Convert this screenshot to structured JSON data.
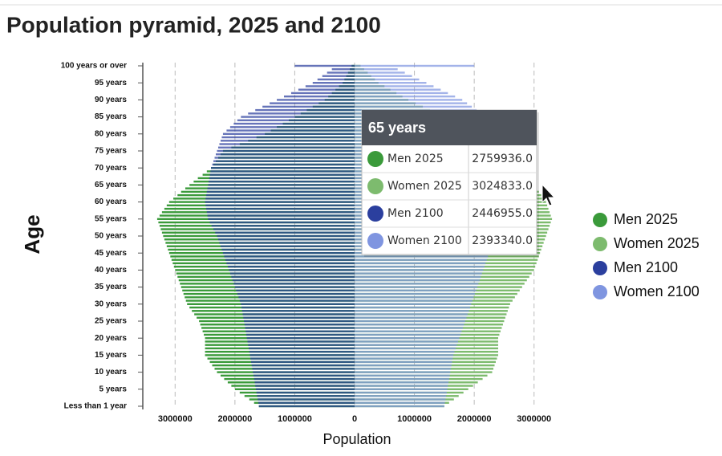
{
  "chart_data": {
    "type": "pyramid",
    "title": "Population pyramid, 2025 and 2100",
    "x_label": "Population",
    "y_label": "Age",
    "categories": [
      "Less than 1 year",
      null,
      null,
      null,
      null,
      "5 years",
      null,
      null,
      null,
      null,
      "10 years",
      null,
      null,
      null,
      null,
      "15 years",
      null,
      null,
      null,
      null,
      "20 years",
      null,
      null,
      null,
      null,
      "25 years",
      null,
      null,
      null,
      null,
      "30 years",
      null,
      null,
      null,
      null,
      "35 years",
      null,
      null,
      null,
      null,
      "40 years",
      null,
      null,
      null,
      null,
      "45 years",
      null,
      null,
      null,
      null,
      "50 years",
      null,
      null,
      null,
      null,
      "55 years",
      null,
      null,
      null,
      null,
      "60 years",
      null,
      null,
      null,
      null,
      "65 years",
      null,
      null,
      null,
      null,
      "70 years",
      null,
      null,
      null,
      null,
      "75 years",
      null,
      null,
      null,
      null,
      "80 years",
      null,
      null,
      null,
      null,
      "85 years",
      null,
      null,
      null,
      null,
      "90 years",
      null,
      null,
      null,
      null,
      "95 years",
      null,
      null,
      null,
      null,
      "100 years or over"
    ],
    "xlim": [
      -3500000,
      3500000
    ],
    "xticks": [
      {
        "value": -3000000,
        "label": "3000000"
      },
      {
        "value": -2000000,
        "label": "2000000"
      },
      {
        "value": -1000000,
        "label": "1000000"
      },
      0,
      1000000,
      2000000,
      3000000
    ],
    "grid": true,
    "legend": "right",
    "series": [
      {
        "name": "Men 2025",
        "color": "#3a9a3a",
        "values": [
          -1600000,
          -1680000,
          -1760000,
          -1840000,
          -1920000,
          -2000000,
          -2060000,
          -2120000,
          -2180000,
          -2240000,
          -2300000,
          -2340000,
          -2380000,
          -2420000,
          -2460000,
          -2500000,
          -2500000,
          -2500000,
          -2500000,
          -2500000,
          -2500000,
          -2520000,
          -2540000,
          -2560000,
          -2580000,
          -2600000,
          -2640000,
          -2680000,
          -2720000,
          -2760000,
          -2800000,
          -2820000,
          -2840000,
          -2860000,
          -2880000,
          -2900000,
          -2920000,
          -2940000,
          -2960000,
          -2980000,
          -3000000,
          -3020000,
          -3040000,
          -3060000,
          -3080000,
          -3100000,
          -3120000,
          -3140000,
          -3160000,
          -3180000,
          -3200000,
          -3220000,
          -3240000,
          -3260000,
          -3280000,
          -3300000,
          -3260000,
          -3220000,
          -3180000,
          -3140000,
          -3100000,
          -3030000,
          -2960000,
          -2900000,
          -2830000,
          -2759936,
          -2690000,
          -2620000,
          -2540000,
          -2470000,
          -2400000,
          -2360000,
          -2320000,
          -2280000,
          -2240000,
          -2200000,
          -2060000,
          -1920000,
          -1780000,
          -1640000,
          -1500000,
          -1400000,
          -1300000,
          -1200000,
          -1100000,
          -1000000,
          -900000,
          -800000,
          -700000,
          -600000,
          -500000,
          -440000,
          -380000,
          -320000,
          -260000,
          -200000,
          -170000,
          -140000,
          -110000,
          -80000,
          -50000
        ]
      },
      {
        "name": "Women 2025",
        "color": "#7dbb6e",
        "values": [
          1500000,
          1580000,
          1660000,
          1740000,
          1820000,
          1900000,
          1980000,
          2060000,
          2140000,
          2220000,
          2300000,
          2320000,
          2340000,
          2360000,
          2380000,
          2400000,
          2400000,
          2400000,
          2400000,
          2400000,
          2400000,
          2420000,
          2440000,
          2460000,
          2480000,
          2500000,
          2520000,
          2540000,
          2560000,
          2580000,
          2600000,
          2640000,
          2680000,
          2720000,
          2760000,
          2800000,
          2840000,
          2880000,
          2920000,
          2960000,
          3000000,
          3020000,
          3040000,
          3060000,
          3080000,
          3100000,
          3120000,
          3140000,
          3160000,
          3180000,
          3200000,
          3220000,
          3240000,
          3260000,
          3280000,
          3300000,
          3280000,
          3260000,
          3240000,
          3220000,
          3200000,
          3160000,
          3120000,
          3080000,
          3040000,
          3024833,
          2980000,
          2930000,
          2890000,
          2840000,
          2800000,
          2740000,
          2680000,
          2620000,
          2560000,
          2500000,
          2400000,
          2300000,
          2200000,
          2100000,
          2000000,
          1900000,
          1800000,
          1700000,
          1600000,
          1500000,
          1380000,
          1260000,
          1140000,
          1020000,
          900000,
          800000,
          700000,
          600000,
          500000,
          400000,
          340000,
          280000,
          220000,
          160000,
          100000
        ]
      },
      {
        "name": "Men 2100",
        "color": "#2b3f9e",
        "values": [
          -1600000,
          -1610000,
          -1620000,
          -1630000,
          -1640000,
          -1650000,
          -1660000,
          -1670000,
          -1680000,
          -1690000,
          -1700000,
          -1710000,
          -1720000,
          -1730000,
          -1740000,
          -1750000,
          -1760000,
          -1770000,
          -1780000,
          -1790000,
          -1800000,
          -1810000,
          -1820000,
          -1830000,
          -1840000,
          -1850000,
          -1860000,
          -1870000,
          -1880000,
          -1890000,
          -1900000,
          -1920000,
          -1940000,
          -1960000,
          -1980000,
          -2000000,
          -2020000,
          -2040000,
          -2060000,
          -2080000,
          -2100000,
          -2120000,
          -2140000,
          -2160000,
          -2180000,
          -2200000,
          -2220000,
          -2240000,
          -2260000,
          -2280000,
          -2300000,
          -2330000,
          -2360000,
          -2390000,
          -2420000,
          -2450000,
          -2460000,
          -2470000,
          -2480000,
          -2490000,
          -2500000,
          -2490000,
          -2480000,
          -2470000,
          -2460000,
          -2446955,
          -2440000,
          -2430000,
          -2420000,
          -2410000,
          -2400000,
          -2380000,
          -2360000,
          -2340000,
          -2320000,
          -2300000,
          -2280000,
          -2260000,
          -2240000,
          -2220000,
          -2200000,
          -2140000,
          -2080000,
          -2020000,
          -1960000,
          -1900000,
          -1780000,
          -1660000,
          -1540000,
          -1420000,
          -1300000,
          -1180000,
          -1060000,
          -940000,
          -820000,
          -700000,
          -620000,
          -540000,
          -460000,
          -380000,
          -1000000
        ]
      },
      {
        "name": "Women 2100",
        "color": "#7f95e0",
        "values": [
          1500000,
          1510000,
          1520000,
          1530000,
          1540000,
          1550000,
          1560000,
          1570000,
          1580000,
          1590000,
          1600000,
          1610000,
          1620000,
          1630000,
          1640000,
          1650000,
          1670000,
          1690000,
          1710000,
          1730000,
          1750000,
          1770000,
          1790000,
          1810000,
          1830000,
          1850000,
          1870000,
          1890000,
          1910000,
          1930000,
          1950000,
          1970000,
          1990000,
          2010000,
          2030000,
          2050000,
          2070000,
          2090000,
          2110000,
          2130000,
          2150000,
          2170000,
          2190000,
          2210000,
          2230000,
          2250000,
          2260000,
          2270000,
          2280000,
          2290000,
          2300000,
          2310000,
          2320000,
          2330000,
          2340000,
          2350000,
          2360000,
          2370000,
          2380000,
          2380000,
          2380000,
          2380000,
          2390000,
          2390000,
          2390000,
          2393340,
          2390000,
          2400000,
          2400000,
          2400000,
          2400000,
          2400000,
          2410000,
          2410000,
          2420000,
          2420000,
          2420000,
          2410000,
          2410000,
          2400000,
          2400000,
          2360000,
          2320000,
          2280000,
          2240000,
          2200000,
          2120000,
          2040000,
          1960000,
          1880000,
          1800000,
          1680000,
          1560000,
          1440000,
          1320000,
          1200000,
          1080000,
          960000,
          840000,
          720000,
          2000000
        ]
      }
    ],
    "tooltip": {
      "title": "65 years",
      "values": [
        "2759936.0",
        "3024833.0",
        "2446955.0",
        "2393340.0"
      ]
    }
  }
}
